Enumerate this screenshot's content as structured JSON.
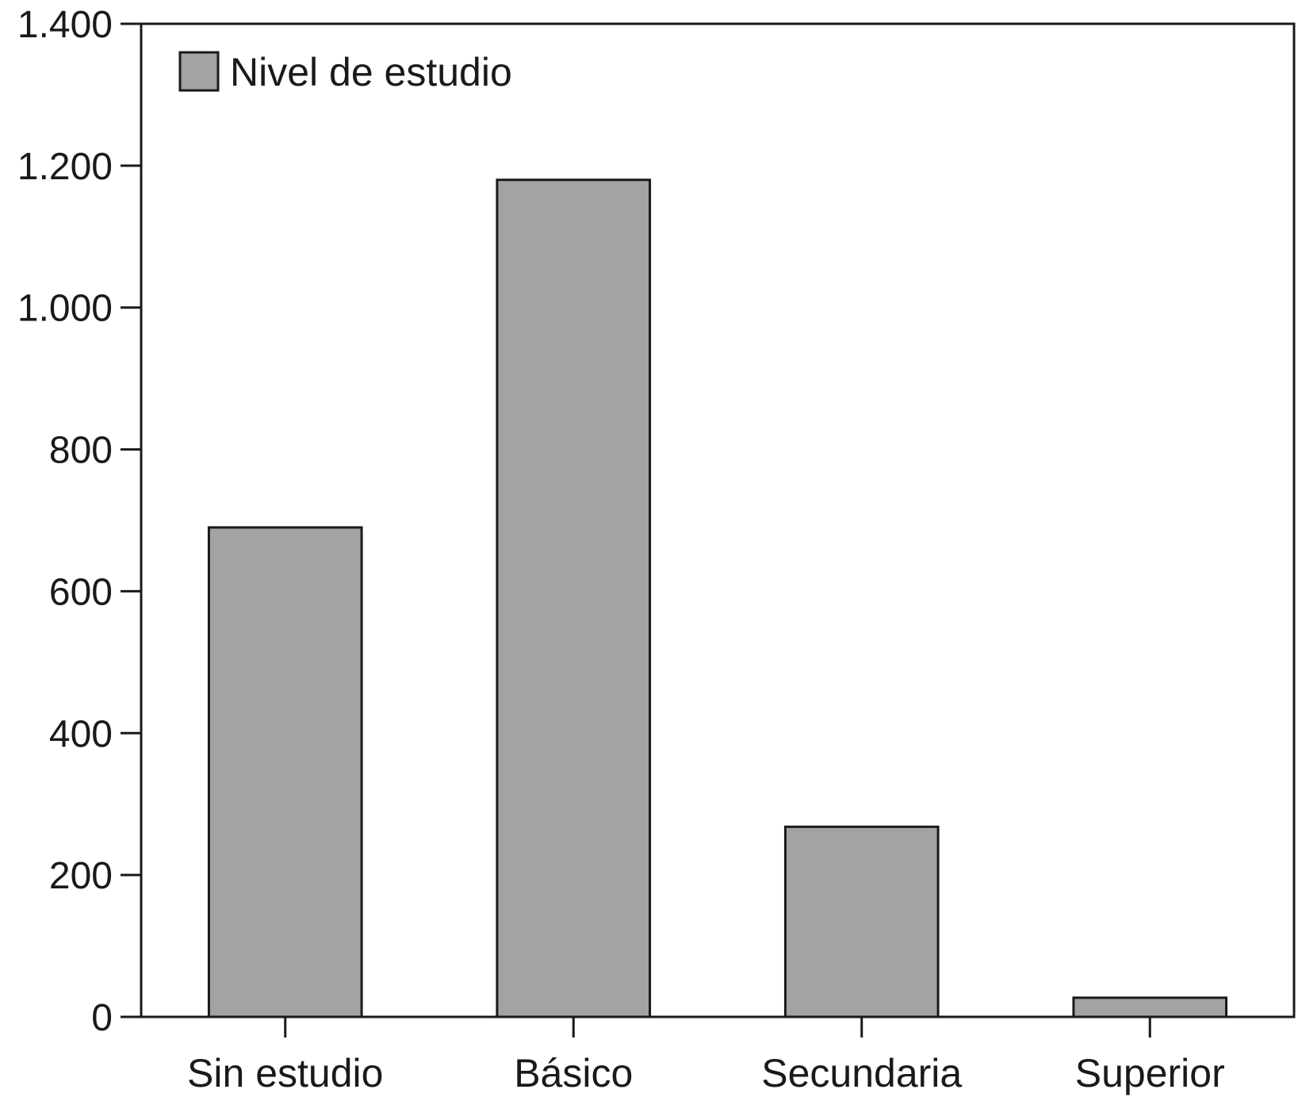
{
  "chart_data": {
    "type": "bar",
    "categories": [
      "Sin estudio",
      "Básico",
      "Secundaria",
      "Superior"
    ],
    "series": [
      {
        "name": "Nivel de estudio",
        "values": [
          690,
          1180,
          268,
          27
        ]
      }
    ],
    "yticks": [
      0,
      200,
      400,
      600,
      800,
      1000,
      1200,
      1400
    ],
    "ytick_labels": [
      "0",
      "200",
      "400",
      "600",
      "800",
      "1.000",
      "1.200",
      "1.400"
    ],
    "ylim": [
      0,
      1400
    ],
    "xlabel": "",
    "ylabel": "",
    "grid": false,
    "legend": {
      "position": "top-left",
      "label": "Nivel de estudio"
    },
    "colors": {
      "bar": "#a3a3a3",
      "outline": "#1a1a1a"
    }
  }
}
